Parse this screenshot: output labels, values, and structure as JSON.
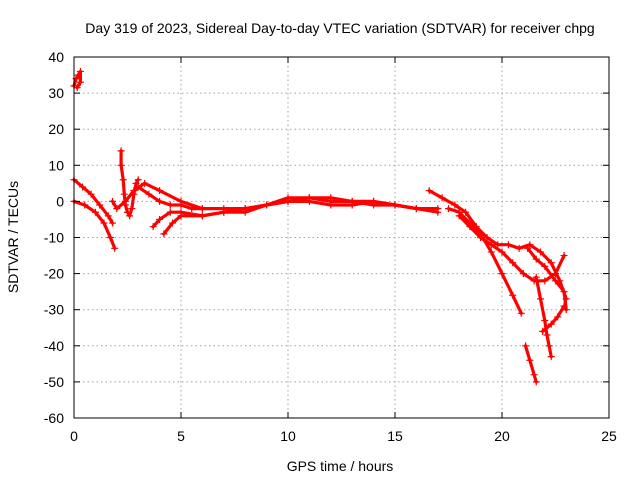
{
  "chart_data": {
    "type": "scatter",
    "title": "Day 319 of 2023, Sidereal Day-to-day VTEC variation (SDTVAR) for receiver chpg",
    "xlabel": "GPS time / hours",
    "ylabel": "SDTVAR / TECUs",
    "xlim": [
      0,
      25
    ],
    "ylim": [
      -60,
      40
    ],
    "xticks": [
      0,
      5,
      10,
      15,
      20,
      25
    ],
    "yticks": [
      -60,
      -50,
      -40,
      -30,
      -20,
      -10,
      0,
      10,
      20,
      30,
      40
    ],
    "grid": true,
    "marker": "plus",
    "color": "#ff0000",
    "series": [
      {
        "name": "arc-1",
        "points": [
          [
            0.0,
            6
          ],
          [
            0.4,
            4
          ],
          [
            0.8,
            2
          ],
          [
            1.2,
            -1
          ],
          [
            1.6,
            -4
          ],
          [
            1.8,
            -6
          ]
        ]
      },
      {
        "name": "arc-2",
        "points": [
          [
            0.0,
            0
          ],
          [
            0.5,
            -1
          ],
          [
            1.0,
            -3
          ],
          [
            1.4,
            -6
          ],
          [
            1.7,
            -10
          ],
          [
            1.9,
            -13
          ]
        ]
      },
      {
        "name": "arc-3",
        "points": [
          [
            0.0,
            32
          ],
          [
            0.1,
            34
          ],
          [
            0.2,
            35
          ],
          [
            0.3,
            36
          ],
          [
            0.3,
            33
          ],
          [
            0.15,
            31.5
          ]
        ]
      },
      {
        "name": "arc-4",
        "points": [
          [
            2.2,
            14
          ],
          [
            2.2,
            10
          ],
          [
            2.3,
            6
          ],
          [
            2.35,
            2
          ],
          [
            2.4,
            -1
          ],
          [
            2.5,
            -3
          ],
          [
            2.6,
            -4
          ],
          [
            2.7,
            -2
          ],
          [
            2.8,
            2
          ],
          [
            2.9,
            5
          ],
          [
            3.0,
            6
          ]
        ]
      },
      {
        "name": "arc-5",
        "points": [
          [
            1.8,
            0
          ],
          [
            2.0,
            -2
          ],
          [
            2.4,
            0
          ],
          [
            2.8,
            3
          ],
          [
            3.3,
            5
          ],
          [
            4.0,
            3
          ],
          [
            5.0,
            0
          ],
          [
            6.0,
            -2
          ],
          [
            7.0,
            -2
          ],
          [
            8.0,
            -2
          ],
          [
            9.0,
            -1
          ],
          [
            10.0,
            0
          ],
          [
            11.0,
            1
          ],
          [
            12.0,
            0
          ],
          [
            13.0,
            0
          ],
          [
            14.0,
            -1
          ],
          [
            15.0,
            -1
          ],
          [
            16.0,
            -2
          ],
          [
            17.0,
            -3
          ]
        ]
      },
      {
        "name": "arc-6",
        "points": [
          [
            3.0,
            4
          ],
          [
            3.5,
            2
          ],
          [
            4.0,
            0
          ],
          [
            4.5,
            -1
          ],
          [
            5.0,
            -1
          ],
          [
            5.5,
            -2
          ],
          [
            6.0,
            -2
          ]
        ]
      },
      {
        "name": "arc-7",
        "points": [
          [
            3.7,
            -7
          ],
          [
            4.0,
            -5
          ],
          [
            4.5,
            -3
          ],
          [
            5.0,
            -3
          ],
          [
            6.0,
            -4
          ],
          [
            7.0,
            -3
          ],
          [
            8.0,
            -3
          ],
          [
            9.0,
            -1
          ],
          [
            10.0,
            0
          ],
          [
            11.0,
            0
          ],
          [
            12.0,
            -1
          ],
          [
            13.0,
            -1
          ],
          [
            14.0,
            0
          ],
          [
            15.0,
            -1
          ],
          [
            16.0,
            -2
          ]
        ]
      },
      {
        "name": "arc-8",
        "points": [
          [
            4.2,
            -9
          ],
          [
            4.6,
            -6
          ],
          [
            5.0,
            -4
          ],
          [
            6.0,
            -4
          ],
          [
            7.0,
            -3
          ],
          [
            8.0,
            -2
          ],
          [
            9.0,
            -1
          ],
          [
            10.0,
            1
          ],
          [
            11.0,
            1
          ],
          [
            12.0,
            1
          ],
          [
            13.0,
            0
          ],
          [
            14.0,
            0
          ],
          [
            15.0,
            -1
          ],
          [
            16.0,
            -2
          ],
          [
            17.0,
            -2
          ]
        ]
      },
      {
        "name": "arc-9",
        "points": [
          [
            16.6,
            3
          ],
          [
            17.2,
            1
          ],
          [
            17.8,
            -1
          ],
          [
            18.3,
            -3
          ],
          [
            18.8,
            -7
          ],
          [
            19.3,
            -10
          ],
          [
            19.8,
            -12
          ],
          [
            20.3,
            -12
          ],
          [
            20.8,
            -13
          ],
          [
            21.3,
            -12
          ],
          [
            21.8,
            -14
          ],
          [
            22.3,
            -17
          ],
          [
            22.7,
            -22
          ],
          [
            23.0,
            -27
          ]
        ]
      },
      {
        "name": "arc-10",
        "points": [
          [
            17.5,
            -2
          ],
          [
            18.0,
            -3
          ],
          [
            18.5,
            -6
          ],
          [
            19.0,
            -9
          ],
          [
            19.5,
            -14
          ],
          [
            20.0,
            -20
          ],
          [
            20.5,
            -26
          ],
          [
            20.9,
            -31
          ]
        ]
      },
      {
        "name": "arc-11",
        "points": [
          [
            18.0,
            -4
          ],
          [
            18.5,
            -7
          ],
          [
            19.0,
            -10
          ],
          [
            19.5,
            -12
          ],
          [
            20.0,
            -14
          ],
          [
            20.5,
            -17
          ],
          [
            21.0,
            -20
          ],
          [
            21.5,
            -22
          ],
          [
            22.0,
            -22
          ],
          [
            22.5,
            -20
          ],
          [
            22.9,
            -15
          ]
        ]
      },
      {
        "name": "arc-12",
        "points": [
          [
            21.1,
            -40
          ],
          [
            21.3,
            -44
          ],
          [
            21.5,
            -48
          ],
          [
            21.6,
            -50
          ]
        ]
      },
      {
        "name": "arc-13",
        "points": [
          [
            21.6,
            -21
          ],
          [
            21.8,
            -27
          ],
          [
            22.0,
            -33
          ],
          [
            22.1,
            -37
          ],
          [
            22.2,
            -40
          ],
          [
            22.3,
            -43
          ]
        ]
      },
      {
        "name": "arc-14",
        "points": [
          [
            21.2,
            -13
          ],
          [
            21.6,
            -16
          ],
          [
            22.0,
            -18
          ],
          [
            22.5,
            -22
          ],
          [
            22.9,
            -25
          ],
          [
            23.0,
            -30
          ]
        ]
      },
      {
        "name": "arc-15",
        "points": [
          [
            21.9,
            -36
          ],
          [
            22.3,
            -34
          ],
          [
            22.6,
            -32
          ],
          [
            22.9,
            -29
          ]
        ]
      }
    ]
  }
}
